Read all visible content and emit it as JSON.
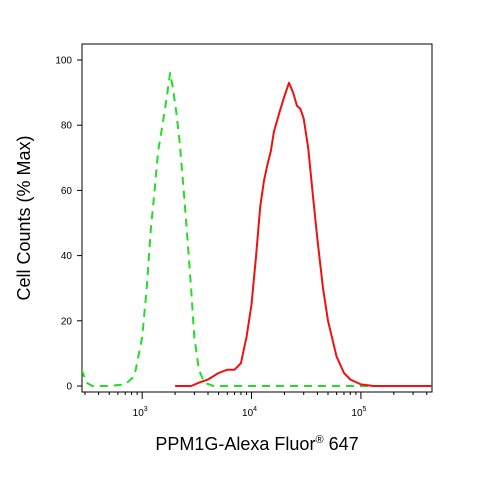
{
  "chart_data": {
    "type": "line",
    "xlabel": "PPM1G-Alexa Fluor",
    "xlabel_superscript": "®",
    "xlabel_suffix": " 647",
    "ylabel": "Cell Counts (% Max)",
    "x_scale": "log",
    "xlim": [
      280,
      450000
    ],
    "ylim": [
      0,
      105
    ],
    "x_ticks": [
      {
        "value": 1000,
        "base": "10",
        "exp": "3"
      },
      {
        "value": 10000,
        "base": "10",
        "exp": "4"
      },
      {
        "value": 100000,
        "base": "10",
        "exp": "5"
      }
    ],
    "y_ticks": [
      0,
      20,
      40,
      60,
      80,
      100
    ],
    "grid": false,
    "series": [
      {
        "color": "#22dd22",
        "style": "dashed",
        "points": [
          [
            280,
            5
          ],
          [
            310,
            1
          ],
          [
            350,
            0
          ],
          [
            500,
            0
          ],
          [
            700,
            0.5
          ],
          [
            850,
            3
          ],
          [
            1000,
            15
          ],
          [
            1100,
            30
          ],
          [
            1200,
            48
          ],
          [
            1300,
            60
          ],
          [
            1400,
            72
          ],
          [
            1500,
            78
          ],
          [
            1600,
            84
          ],
          [
            1700,
            90
          ],
          [
            1800,
            96
          ],
          [
            1900,
            92
          ],
          [
            2050,
            84
          ],
          [
            2200,
            75
          ],
          [
            2400,
            60
          ],
          [
            2600,
            45
          ],
          [
            2800,
            30
          ],
          [
            3000,
            15
          ],
          [
            3300,
            5
          ],
          [
            3700,
            1
          ],
          [
            4500,
            0
          ],
          [
            450000,
            0
          ]
        ]
      },
      {
        "color": "#ee1111",
        "style": "solid",
        "points": [
          [
            2000,
            0
          ],
          [
            2800,
            0
          ],
          [
            3300,
            1
          ],
          [
            4000,
            2
          ],
          [
            5000,
            4
          ],
          [
            6000,
            5
          ],
          [
            7000,
            5
          ],
          [
            8000,
            7
          ],
          [
            9000,
            15
          ],
          [
            10000,
            25
          ],
          [
            11000,
            40
          ],
          [
            12000,
            55
          ],
          [
            13000,
            63
          ],
          [
            14000,
            68
          ],
          [
            15000,
            72
          ],
          [
            16000,
            78
          ],
          [
            18000,
            84
          ],
          [
            20000,
            89
          ],
          [
            22000,
            93
          ],
          [
            24000,
            90
          ],
          [
            26000,
            86
          ],
          [
            28000,
            85
          ],
          [
            30000,
            82
          ],
          [
            33000,
            73
          ],
          [
            36000,
            60
          ],
          [
            40000,
            45
          ],
          [
            45000,
            30
          ],
          [
            50000,
            20
          ],
          [
            60000,
            9
          ],
          [
            70000,
            4
          ],
          [
            80000,
            2
          ],
          [
            100000,
            0.5
          ],
          [
            130000,
            0
          ],
          [
            450000,
            0
          ]
        ]
      }
    ]
  }
}
